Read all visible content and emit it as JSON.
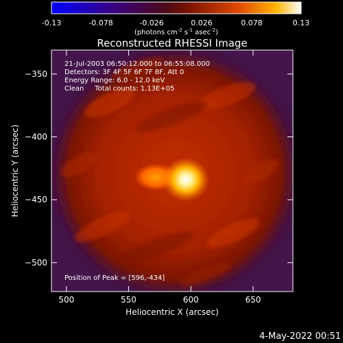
{
  "colorbar": {
    "tick_labels": [
      "-0.13",
      "-0.078",
      "-0.026",
      "0.026",
      "0.078",
      "0.13"
    ],
    "unit_label_main": "(photons cm",
    "unit_exp1": "-2",
    "unit_mid1": " s",
    "unit_exp2": "-1",
    "unit_mid2": " asec",
    "unit_exp3": "-2",
    "unit_close": ")"
  },
  "footer": {
    "timestamp": "4-May-2022 00:51"
  },
  "chart_data": {
    "type": "heatmap",
    "title": "Reconstructed RHESSI Image",
    "xlabel": "Heliocentric X (arcsec)",
    "ylabel": "Heliocentric Y (arcsec)",
    "xlim": [
      488,
      682
    ],
    "ylim": [
      -523,
      -331
    ],
    "x_ticks": [
      500,
      550,
      600,
      650
    ],
    "y_ticks": [
      -350,
      -400,
      -450,
      -500
    ],
    "x_tick_labels": [
      "500",
      "550",
      "600",
      "650"
    ],
    "y_tick_labels": [
      "−350",
      "−400",
      "−450",
      "−500"
    ],
    "color_range": [
      -0.13,
      0.13
    ],
    "annotations": [
      "21-Jul-2003 06:50:12.000 to 06:55:08.000",
      "Detectors: 3F 4F 5F 6F 7F 8F, Att 0",
      "Energy Range: 6.0 - 12.0 keV",
      "Clean     Total counts: 1.13E+05"
    ],
    "peak_label": "Position of Peak = [596,-434]",
    "peak": {
      "x": 596,
      "y": -434,
      "value": 0.13
    },
    "secondary_source": {
      "x": 572,
      "y": -432,
      "value": 0.1
    },
    "background_value": 0.03,
    "corner_value": -0.03
  }
}
